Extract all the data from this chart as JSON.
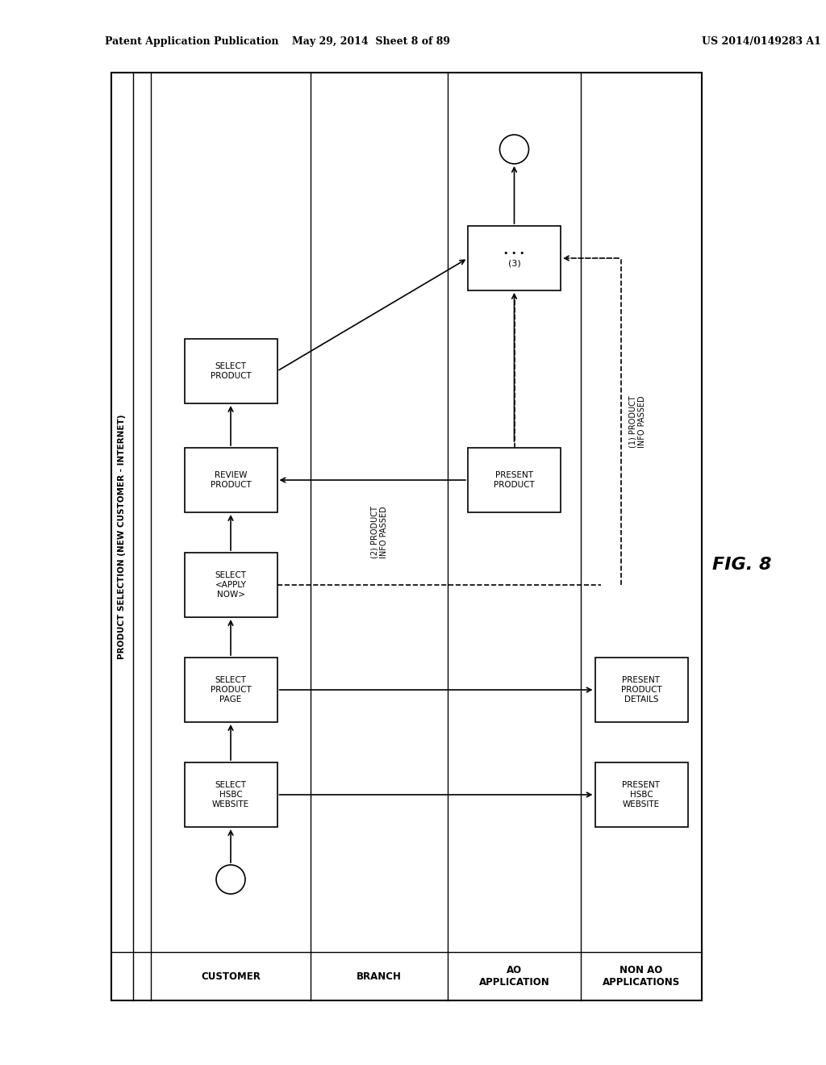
{
  "title_left": "Patent Application Publication",
  "title_mid": "May 29, 2014  Sheet 8 of 89",
  "title_right": "US 2014/0149283 A1",
  "fig_label": "FIG. 8",
  "side_label": "PRODUCT SELECTION (NEW CUSTOMER - INTERNET)",
  "lane_labels": [
    "CUSTOMER",
    "BRANCH",
    "AO\nAPPLICATION",
    "NON AO\nAPPLICATIONS"
  ],
  "background_color": "#ffffff"
}
